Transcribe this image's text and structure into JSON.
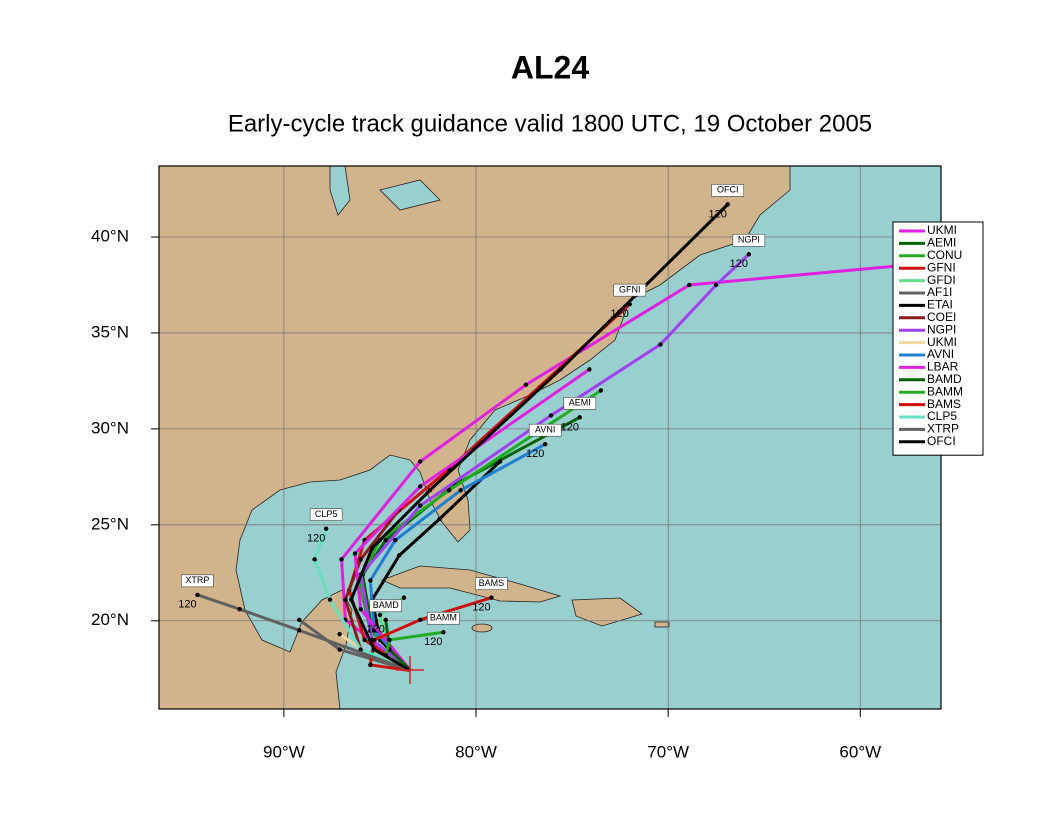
{
  "chart_data": {
    "type": "track-map",
    "title": "AL24",
    "subtitle": "Early-cycle track guidance valid 1800 UTC, 19 October 2005",
    "xlim": [
      -96.5,
      -55.8
    ],
    "ylim": [
      15.4,
      43.7
    ],
    "xticks": [
      {
        "value": -90,
        "label": "90°W"
      },
      {
        "value": -80,
        "label": "80°W"
      },
      {
        "value": -70,
        "label": "70°W"
      },
      {
        "value": -60,
        "label": "60°W"
      }
    ],
    "yticks": [
      {
        "value": 20,
        "label": "20°N"
      },
      {
        "value": 25,
        "label": "25°N"
      },
      {
        "value": 30,
        "label": "30°N"
      },
      {
        "value": 35,
        "label": "35°N"
      },
      {
        "value": 40,
        "label": "40°N"
      }
    ],
    "grid": true,
    "legend": "upper right",
    "series": [
      {
        "name": "UKMI",
        "color": "#e020e0",
        "x": [
          -83.4,
          -86.8,
          -87.0,
          -82.9,
          -77.4,
          -68.9,
          -55.8
        ],
        "y": [
          17.4,
          20.05,
          23.2,
          28.3,
          32.3,
          37.5,
          38.7
        ]
      },
      {
        "name": "AEMI",
        "color": "#006400",
        "x": [
          -83.4,
          -85.4,
          -85.9,
          -84.7,
          -81.1,
          -74.6
        ],
        "y": [
          17.4,
          19.4,
          22.4,
          24.2,
          27.1,
          30.6
        ],
        "end_hour": 120
      },
      {
        "name": "CONU",
        "color": "#22aa22",
        "x": [
          -83.4,
          -85.5,
          -86.1,
          -85.0,
          -81.4,
          -73.5
        ],
        "y": [
          17.4,
          19.5,
          22.1,
          24.2,
          26.8,
          32.0
        ]
      },
      {
        "name": "GFNI",
        "color": "#d01010",
        "x": [
          -83.4,
          -85.8,
          -86.6,
          -85.8,
          -81.4,
          -72.0
        ],
        "y": [
          17.4,
          19.0,
          21.6,
          24.2,
          27.9,
          36.5
        ],
        "end_hour": 120
      },
      {
        "name": "GFDI",
        "color": "#66dd88",
        "x": [
          -83.4,
          -84.7,
          -85.0,
          -83.75
        ],
        "y": [
          17.4,
          19.0,
          20.3,
          21.2
        ]
      },
      {
        "name": "AF1I",
        "color": "#606060",
        "x": [
          -83.4,
          -87.1,
          -89.2
        ],
        "y": [
          17.4,
          18.5,
          20.05
        ]
      },
      {
        "name": "ETAI",
        "color": "#000000",
        "x": [
          -83.4,
          -85.0,
          -85.4,
          -84.0,
          -81.9,
          -78.75
        ],
        "y": [
          17.4,
          19.0,
          21.1,
          23.4,
          25.3,
          28.3
        ]
      },
      {
        "name": "COEI",
        "color": "#8b1a1a",
        "x": [
          -83.4,
          -86.0,
          -86.8,
          -86.0,
          -84.0
        ],
        "y": [
          17.4,
          18.5,
          21.1,
          23.2,
          25.8
        ]
      },
      {
        "name": "NGPI",
        "color": "#a040f0",
        "x": [
          -83.4,
          -85.4,
          -86.0,
          -82.9,
          -76.1,
          -70.4,
          -67.5,
          -65.8
        ],
        "y": [
          17.4,
          19.0,
          22.4,
          26.0,
          30.7,
          34.4,
          37.5,
          39.1
        ],
        "end_hour": 120
      },
      {
        "name": "UKMI",
        "color": "#f0d8a0",
        "x": [
          -83.4,
          -85.5,
          -87.1
        ],
        "y": [
          17.4,
          18.2,
          19.3
        ]
      },
      {
        "name": "AVNI",
        "color": "#1e7fd0",
        "x": [
          -83.4,
          -85.3,
          -85.5,
          -84.2,
          -80.8,
          -76.4
        ],
        "y": [
          17.4,
          19.5,
          22.1,
          24.2,
          26.8,
          29.2
        ],
        "end_hour": 120
      },
      {
        "name": "LBAR",
        "color": "#e020e0",
        "x": [
          -83.4,
          -86.0,
          -86.3,
          -82.9,
          -74.1
        ],
        "y": [
          17.4,
          20.6,
          23.5,
          27.0,
          33.1
        ]
      },
      {
        "name": "BAMD",
        "color": "#006400",
        "x": [
          -83.4,
          -84.5,
          -84.7
        ],
        "y": [
          17.4,
          18.5,
          20.05
        ],
        "end_hour": 120
      },
      {
        "name": "BAMM",
        "color": "#22aa22",
        "x": [
          -83.4,
          -84.7,
          -84.5,
          -81.7
        ],
        "y": [
          17.4,
          18.2,
          19.0,
          19.4
        ],
        "end_hour": 120
      },
      {
        "name": "BAMS",
        "color": "#d01010",
        "x": [
          -83.4,
          -85.5,
          -85.3,
          -82.9,
          -79.2
        ],
        "y": [
          17.4,
          17.7,
          19.0,
          20.05,
          21.2
        ],
        "end_hour": 120
      },
      {
        "name": "CLP5",
        "color": "#66e0c0",
        "x": [
          -83.4,
          -86.0,
          -87.6,
          -88.4,
          -87.8
        ],
        "y": [
          17.4,
          18.5,
          21.1,
          23.2,
          24.8
        ],
        "end_hour": 120
      },
      {
        "name": "XTRP",
        "color": "#606060",
        "x": [
          -83.4,
          -89.2,
          -92.3,
          -94.5
        ],
        "y": [
          17.4,
          19.5,
          20.6,
          21.35
        ],
        "end_hour": 120
      },
      {
        "name": "OFCI",
        "color": "#000000",
        "x": [
          -83.4,
          -85.3,
          -86.5,
          -85.4,
          -82.4,
          -75.6,
          -66.9
        ],
        "y": [
          17.4,
          18.5,
          21.1,
          23.8,
          26.8,
          33.1,
          41.7
        ],
        "end_hour": 120
      }
    ]
  }
}
